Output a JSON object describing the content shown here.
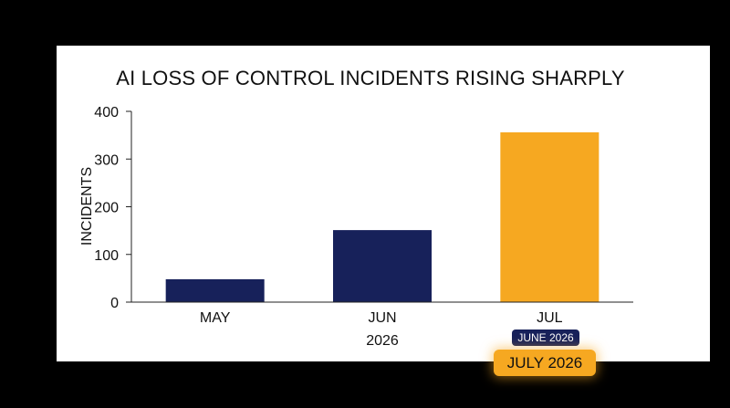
{
  "chart_data": {
    "type": "bar",
    "title": "AI LOSS OF CONTROL INCIDENTS RISING SHARPLY",
    "ylabel": "INCIDENTS",
    "xlabel": "2026",
    "categories": [
      "MAY",
      "JUN",
      "JUL"
    ],
    "values": [
      48,
      151,
      356
    ],
    "ylim": [
      0,
      400
    ],
    "yticks": [
      0,
      100,
      200,
      300,
      400
    ],
    "grid": false,
    "bar_colors": [
      "#17215a",
      "#17215a",
      "#f6a821"
    ]
  },
  "badges": {
    "small": {
      "text": "JUNE 2026",
      "color": "#17215a"
    },
    "large": {
      "text": "JULY 2026",
      "color": "#f6a821"
    }
  }
}
